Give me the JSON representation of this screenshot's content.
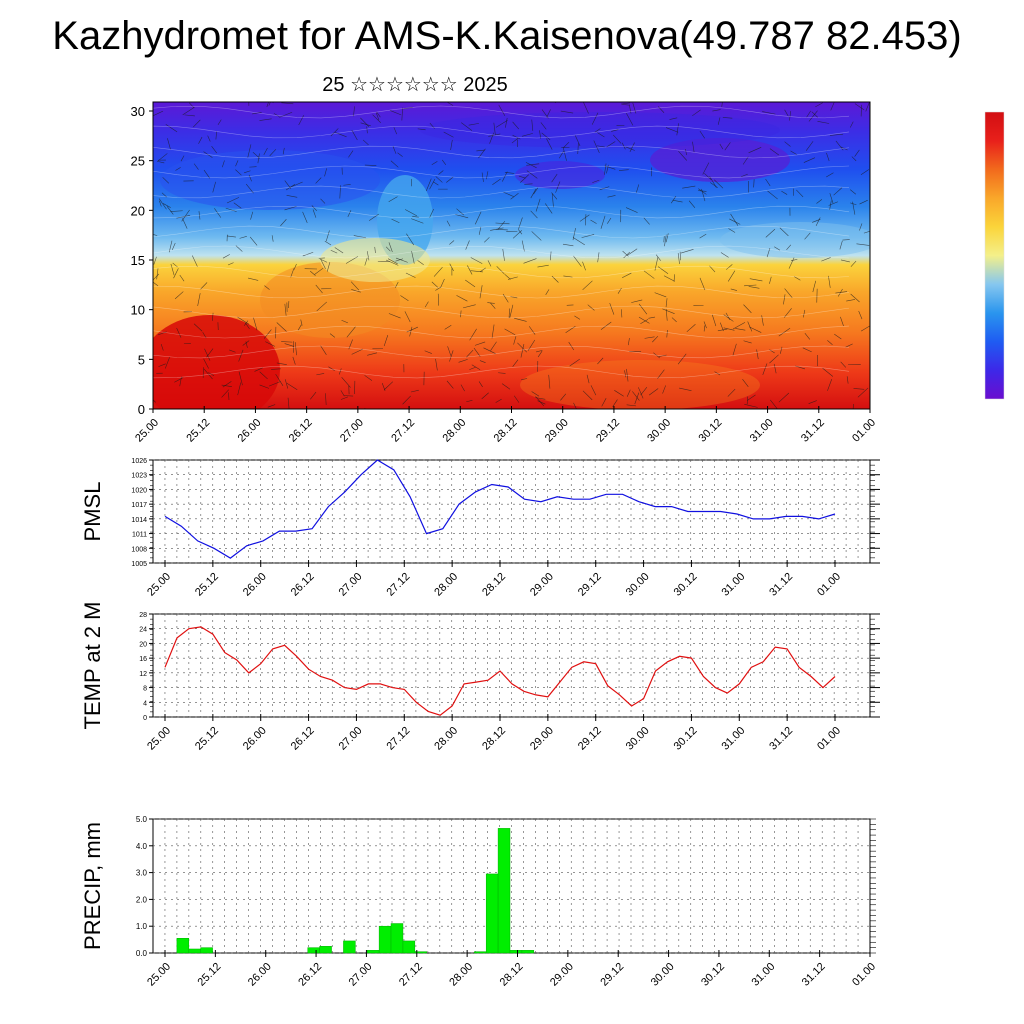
{
  "header": {
    "title": "Kazhydromet for AMS-K.Kaisenova(49.787 82.453)",
    "subtitle": "25 ☆☆☆☆☆☆ 2025"
  },
  "chart_data": [
    {
      "type": "heatmap",
      "name": "vertical-cross-section",
      "xlabel": "",
      "ylabel": "",
      "x_ticks": [
        "25.00",
        "25.12",
        "26.00",
        "26.12",
        "27.00",
        "27.12",
        "28.00",
        "28.12",
        "29.00",
        "29.12",
        "30.00",
        "30.12",
        "31.00",
        "31.12",
        "01.00"
      ],
      "y_ticks": [
        "0",
        "5",
        "10",
        "15",
        "20",
        "25",
        "30"
      ],
      "ylim": [
        0,
        30
      ],
      "colormap": [
        "#6a0dcf",
        "#3d28e8",
        "#1f5cf2",
        "#2a95ee",
        "#86c7ef",
        "#f4f08a",
        "#fbd43a",
        "#f9a72a",
        "#f26a1c",
        "#e8201b",
        "#d20e12"
      ],
      "colorbar_shown": true,
      "wind_barbs": true
    },
    {
      "type": "line",
      "name": "pmsl",
      "ylabel": "PMSL",
      "color": "#1010e0",
      "yticks": [
        1005,
        1008,
        1011,
        1014,
        1017,
        1020,
        1023,
        1026
      ],
      "ylim": [
        1005,
        1026
      ],
      "x_ticks": [
        "25.00",
        "25.12",
        "26.00",
        "26.12",
        "27.00",
        "27.12",
        "28.00",
        "28.12",
        "29.00",
        "29.12",
        "30.00",
        "30.12",
        "31.00",
        "31.12",
        "01.00"
      ],
      "values": [
        1014.5,
        1012.5,
        1009.5,
        1008,
        1006,
        1008.5,
        1009.5,
        1011.5,
        1011.5,
        1012,
        1016.5,
        1019.5,
        1023,
        1026,
        1024,
        1018.5,
        1011,
        1012,
        1017,
        1019.5,
        1021,
        1020.5,
        1018,
        1017.5,
        1018.5,
        1018,
        1018,
        1019,
        1019,
        1017.5,
        1016.5,
        1016.5,
        1015.5,
        1015.5,
        1015.5,
        1015,
        1014,
        1014,
        1014.5,
        1014.5,
        1014,
        1015
      ]
    },
    {
      "type": "line",
      "name": "temp-2m",
      "ylabel": "TEMP at 2 M",
      "color": "#e01010",
      "yticks": [
        0,
        4,
        8,
        12,
        16,
        20,
        24,
        28
      ],
      "ylim": [
        0,
        28
      ],
      "x_ticks": [
        "25.00",
        "25.12",
        "26.00",
        "26.12",
        "27.00",
        "27.12",
        "28.00",
        "28.12",
        "29.00",
        "29.12",
        "30.00",
        "30.12",
        "31.00",
        "31.12",
        "01.00"
      ],
      "values": [
        13.5,
        21.5,
        24,
        24.5,
        22.5,
        17.5,
        15.5,
        12,
        14.5,
        18.5,
        19.5,
        16.5,
        13,
        11,
        10,
        8,
        7.5,
        9,
        9,
        8,
        7.5,
        4,
        1.5,
        0.5,
        3,
        9,
        9.5,
        10,
        12.5,
        9,
        7,
        6,
        5.5,
        9.5,
        13.5,
        15,
        14.5,
        8.5,
        6,
        3,
        5,
        12.5,
        15,
        16.5,
        16,
        11,
        8,
        6.5,
        9,
        13.5,
        15,
        19,
        18.5,
        13.5,
        11,
        8,
        11
      ]
    },
    {
      "type": "bar",
      "name": "precip",
      "ylabel": "PRECIP, mm",
      "color": "#00ee00",
      "yticks": [
        "0.0",
        "1.0",
        "2.0",
        "3.0",
        "4.0",
        "5.0"
      ],
      "ylim": [
        0,
        5
      ],
      "x_ticks": [
        "25.00",
        "25.12",
        "26.00",
        "26.12",
        "27.00",
        "27.12",
        "28.00",
        "28.12",
        "29.00",
        "29.12",
        "30.00",
        "30.12",
        "31.00",
        "31.12",
        "01.00"
      ],
      "values": [
        0,
        0.55,
        0.15,
        0.2,
        0,
        0,
        0,
        0,
        0,
        0,
        0,
        0,
        0.2,
        0.25,
        0,
        0.45,
        0,
        0.1,
        1.0,
        1.1,
        0.45,
        0.05,
        0,
        0,
        0,
        0,
        0.05,
        2.95,
        4.65,
        0.1,
        0.1,
        0,
        0,
        0,
        0,
        0,
        0,
        0,
        0,
        0,
        0,
        0,
        0,
        0,
        0,
        0,
        0,
        0,
        0,
        0,
        0,
        0,
        0,
        0,
        0,
        0,
        0,
        0
      ]
    }
  ]
}
